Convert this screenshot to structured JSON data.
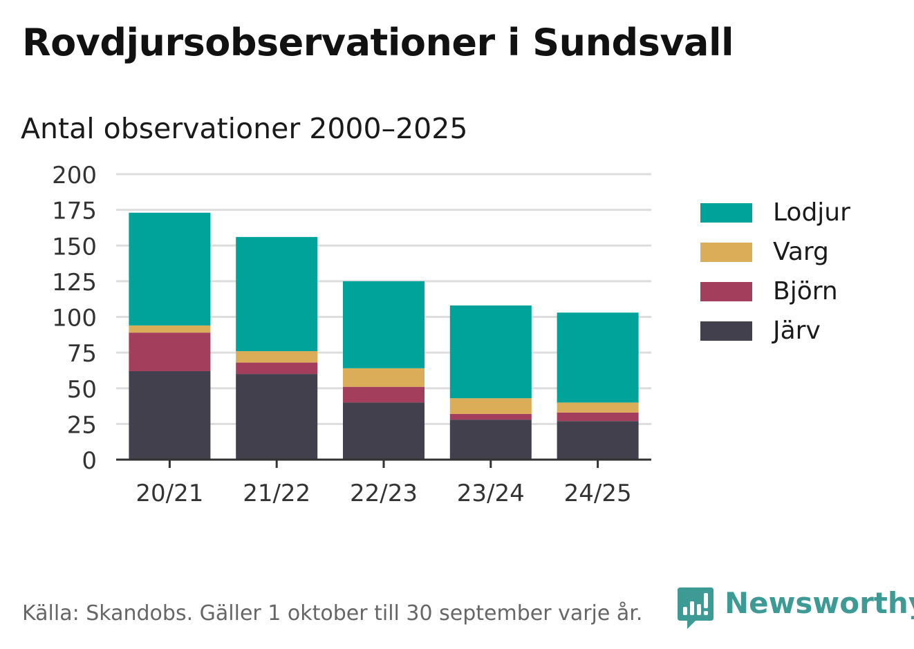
{
  "header": {
    "title": "Rovdjursobservationer i Sundsvall",
    "subtitle": "Antal observationer 2000–2025"
  },
  "chart_data": {
    "type": "bar",
    "stacked": true,
    "title": "Rovdjursobservationer i Sundsvall",
    "subtitle": "Antal observationer 2000–2025",
    "xlabel": "",
    "ylabel": "",
    "ylim": [
      0,
      200
    ],
    "yticks": [
      0,
      25,
      50,
      75,
      100,
      125,
      150,
      175,
      200
    ],
    "ytick_labels": [
      "0",
      "25",
      "50",
      "75",
      "100",
      "125",
      "150",
      "175",
      "200"
    ],
    "categories": [
      "20/21",
      "21/22",
      "22/23",
      "23/24",
      "24/25"
    ],
    "grid": true,
    "legend_position": "right",
    "series": [
      {
        "name": "Järv",
        "color": "#42404d",
        "values": [
          62,
          60,
          40,
          28,
          27
        ]
      },
      {
        "name": "Björn",
        "color": "#a33f5c",
        "values": [
          27,
          8,
          11,
          4,
          6
        ]
      },
      {
        "name": "Varg",
        "color": "#dbad59",
        "values": [
          5,
          8,
          13,
          11,
          7
        ]
      },
      {
        "name": "Lodjur",
        "color": "#00a39a",
        "values": [
          79,
          80,
          61,
          65,
          63
        ]
      }
    ]
  },
  "legend": {
    "items": [
      {
        "label": "Lodjur",
        "color": "#00a39a"
      },
      {
        "label": "Varg",
        "color": "#dbad59"
      },
      {
        "label": "Björn",
        "color": "#a33f5c"
      },
      {
        "label": "Järv",
        "color": "#42404d"
      }
    ]
  },
  "footer": {
    "source": "Källa: Skandobs. Gäller 1 oktober till 30 september varje år.",
    "brand": "Newsworthy",
    "brand_color": "#3d9a95"
  }
}
